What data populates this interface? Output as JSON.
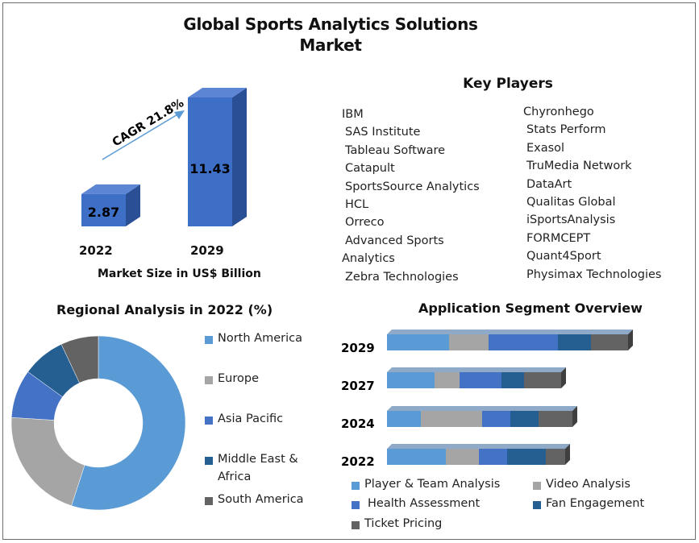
{
  "title": {
    "line1": "Global Sports Analytics Solutions",
    "line2": "Market"
  },
  "colors": {
    "blue_bar": "#3e6fc7",
    "blue_bar_top": "#5c86d4",
    "blue_bar_side": "#2a4f95",
    "seg1": "#5b9bd5",
    "seg2": "#a5a5a5",
    "seg3": "#4472c4",
    "seg4": "#255e91",
    "seg5": "#636363"
  },
  "market_size": {
    "cagr_label": "CAGR 21.8%",
    "axis_label": "Market Size in US$ Billion",
    "bars": [
      {
        "year": "2022",
        "value": 2.87,
        "label": "2.87"
      },
      {
        "year": "2029",
        "value": 11.43,
        "label": "11.43"
      }
    ]
  },
  "key_players": {
    "title": "Key Players",
    "left": [
      "IBM",
      "SAS Institute",
      "Tableau Software",
      "Catapult",
      "SportsSource Analytics",
      "HCL",
      "Orreco",
      "Advanced Sports",
      "Analytics",
      "Zebra Technologies"
    ],
    "right": [
      "Chyronhego",
      "Stats Perform",
      "Exasol",
      "TruMedia Network",
      "DataArt",
      "Qualitas Global",
      "iSportsAnalysis",
      "FORMCEPT",
      "Quant4Sport",
      "Physimax Technologies"
    ]
  },
  "regional": {
    "title": "Regional Analysis in 2022 (%)",
    "legend": [
      "North America",
      "Europe",
      "Asia Pacific",
      "Middle East &",
      "Africa",
      "South America"
    ]
  },
  "application": {
    "title": "Application Segment Overview",
    "legend": [
      "Player & Team Analysis",
      "Video Analysis",
      "Health Assessment",
      "Fan Engagement",
      "Ticket Pricing"
    ]
  },
  "chart_data": [
    {
      "type": "bar",
      "title": "Market Size in US$ Billion",
      "categories": [
        "2022",
        "2029"
      ],
      "values": [
        2.87,
        11.43
      ],
      "annotation": "CAGR 21.8%",
      "ylim": [
        0,
        11.43
      ]
    },
    {
      "type": "pie",
      "title": "Regional Analysis in 2022 (%)",
      "labels": [
        "North America",
        "Europe",
        "Asia Pacific",
        "Middle East & Africa",
        "South America"
      ],
      "values": [
        55,
        21,
        9,
        8,
        7
      ],
      "donut": true
    },
    {
      "type": "bar",
      "orientation": "horizontal",
      "stacked": true,
      "title": "Application Segment Overview",
      "categories": [
        "2029",
        "2027",
        "2024",
        "2022"
      ],
      "series": [
        {
          "name": "Player & Team Analysis",
          "values": [
            77,
            59,
            42,
            73
          ]
        },
        {
          "name": "Video Analysis",
          "values": [
            49,
            31,
            76,
            41
          ]
        },
        {
          "name": "Health Assessment",
          "values": [
            86,
            52,
            35,
            35
          ]
        },
        {
          "name": "Fan Engagement",
          "values": [
            41,
            28,
            35,
            48
          ]
        },
        {
          "name": "Ticket Pricing",
          "values": [
            46,
            46,
            42,
            24
          ]
        }
      ]
    }
  ]
}
